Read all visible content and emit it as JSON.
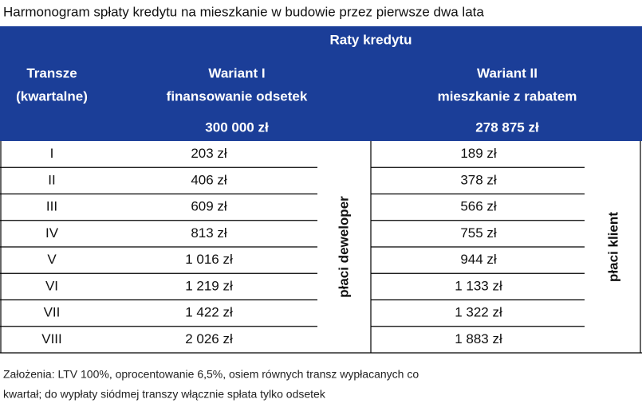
{
  "title": "Harmonogram spłaty kredytu na mieszkanie w budowie przez pierwsze dwa lata",
  "header": {
    "group_label": "Raty kredytu",
    "columns": [
      [
        "Transze",
        "(kwartalne)"
      ],
      [
        "Wariant I",
        "finansowanie odsetek"
      ],
      [
        "Wariant II",
        "mieszkanie z rabatem"
      ]
    ],
    "amounts": [
      "300 000 zł",
      "278 875 zł"
    ]
  },
  "table": {
    "rows": [
      [
        "I",
        "203 zł",
        "189 zł"
      ],
      [
        "II",
        "406 zł",
        "378 zł"
      ],
      [
        "III",
        "609 zł",
        "566 zł"
      ],
      [
        "IV",
        "813 zł",
        "755 zł"
      ],
      [
        "V",
        "1 016 zł",
        "944 zł"
      ],
      [
        "VI",
        "1 219 zł",
        "1 133 zł"
      ],
      [
        "VII",
        "1 422 zł",
        "1 322 zł"
      ],
      [
        "VIII",
        "2 026 zł",
        "1 883 zł"
      ]
    ],
    "side_labels": [
      "płaci deweloper",
      "płaci klient"
    ]
  },
  "footnote": [
    "Założenia: LTV 100%, oprocentowanie 6,5%, osiem równych transz wypłacanych co",
    "kwartał; do wypłaty siódmej transzy włącznie spłata tylko odsetek"
  ]
}
